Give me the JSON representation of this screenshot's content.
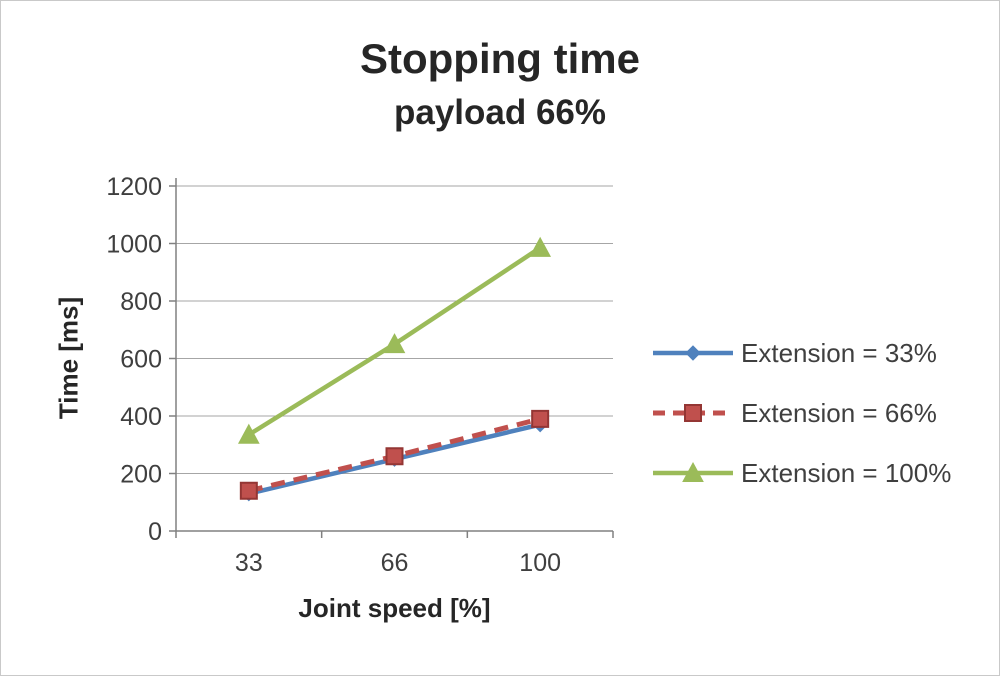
{
  "title": "Stopping time",
  "subtitle": "payload 66%",
  "chart_data": {
    "type": "line",
    "categories": [
      "33",
      "66",
      "100"
    ],
    "xlabel": "Joint speed [%]",
    "ylabel": "Time [ms]",
    "ylim": [
      0,
      1200
    ],
    "ytick_step": 200,
    "grid": true,
    "legend_position": "right",
    "series": [
      {
        "name": "Extension = 33%",
        "values": [
          130,
          250,
          370
        ],
        "color": "#4F81BD",
        "marker": "diamond",
        "dash": "solid"
      },
      {
        "name": "Extension = 66%",
        "values": [
          140,
          260,
          390
        ],
        "color": "#C0504D",
        "marker": "square",
        "dash": "dashed"
      },
      {
        "name": "Extension = 100%",
        "values": [
          335,
          650,
          985
        ],
        "color": "#9BBB59",
        "marker": "triangle",
        "dash": "solid"
      }
    ]
  }
}
